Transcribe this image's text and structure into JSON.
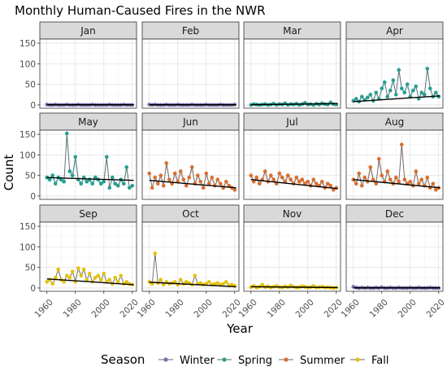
{
  "chart_data": {
    "type": "line",
    "title": "Monthly Human-Caused Fires in the NWR",
    "xlabel": "Year",
    "ylabel": "Count",
    "xlim": [
      1955,
      2023
    ],
    "ylim": [
      -8,
      160
    ],
    "x_ticks": [
      1960,
      1980,
      2000,
      2020
    ],
    "y_ticks": [
      0,
      50,
      100,
      150
    ],
    "grid": true,
    "legend": {
      "title": "Season",
      "position": "bottom",
      "entries": [
        {
          "name": "Winter",
          "color": "#7b6fae"
        },
        {
          "name": "Spring",
          "color": "#2a9d8f"
        },
        {
          "name": "Summer",
          "color": "#d96e2e"
        },
        {
          "name": "Fall",
          "color": "#e4c20d"
        }
      ]
    },
    "years": [
      1960,
      1962,
      1964,
      1966,
      1968,
      1970,
      1972,
      1974,
      1976,
      1978,
      1980,
      1982,
      1984,
      1986,
      1988,
      1990,
      1992,
      1994,
      1996,
      1998,
      2000,
      2002,
      2004,
      2006,
      2008,
      2010,
      2012,
      2014,
      2016,
      2018,
      2020
    ],
    "panels": [
      {
        "month": "Jan",
        "season": "Winter",
        "values": [
          1,
          0,
          0,
          1,
          0,
          0,
          0,
          1,
          0,
          0,
          0,
          1,
          0,
          0,
          0,
          0,
          1,
          0,
          0,
          0,
          0,
          0,
          1,
          0,
          0,
          0,
          0,
          1,
          0,
          0,
          0
        ],
        "trend": [
          0.4,
          0.4
        ]
      },
      {
        "month": "Feb",
        "season": "Winter",
        "values": [
          1,
          0,
          1,
          0,
          0,
          0,
          1,
          0,
          0,
          0,
          1,
          0,
          0,
          0,
          0,
          1,
          0,
          0,
          0,
          0,
          1,
          0,
          0,
          0,
          0,
          1,
          0,
          0,
          0,
          0,
          1
        ],
        "trend": [
          0.4,
          0.4
        ]
      },
      {
        "month": "Mar",
        "season": "Spring",
        "values": [
          0,
          2,
          1,
          0,
          1,
          2,
          0,
          1,
          3,
          0,
          2,
          1,
          4,
          0,
          2,
          1,
          3,
          0,
          2,
          5,
          1,
          2,
          0,
          3,
          1,
          4,
          2,
          1,
          6,
          2,
          1
        ],
        "trend": [
          0.5,
          3
        ]
      },
      {
        "month": "Apr",
        "season": "Spring",
        "values": [
          10,
          15,
          8,
          20,
          12,
          18,
          25,
          10,
          30,
          15,
          40,
          55,
          20,
          35,
          60,
          25,
          85,
          40,
          30,
          50,
          20,
          35,
          45,
          15,
          30,
          25,
          88,
          40,
          20,
          30,
          20
        ],
        "trend": [
          8,
          22
        ]
      },
      {
        "month": "May",
        "season": "Spring",
        "values": [
          45,
          40,
          50,
          30,
          45,
          40,
          35,
          152,
          60,
          50,
          95,
          40,
          30,
          45,
          35,
          40,
          30,
          45,
          40,
          30,
          35,
          95,
          20,
          45,
          30,
          25,
          40,
          30,
          70,
          20,
          25
        ],
        "trend": [
          45,
          38
        ]
      },
      {
        "month": "Jun",
        "season": "Summer",
        "values": [
          55,
          20,
          45,
          30,
          50,
          25,
          80,
          40,
          30,
          55,
          35,
          60,
          40,
          25,
          45,
          70,
          30,
          50,
          35,
          20,
          55,
          30,
          45,
          25,
          40,
          30,
          20,
          35,
          25,
          20,
          15
        ],
        "trend": [
          38,
          20
        ]
      },
      {
        "month": "Jul",
        "season": "Summer",
        "values": [
          50,
          35,
          45,
          30,
          40,
          60,
          35,
          50,
          40,
          30,
          55,
          45,
          35,
          50,
          40,
          30,
          45,
          35,
          40,
          30,
          35,
          25,
          40,
          30,
          25,
          35,
          20,
          30,
          25,
          15,
          20
        ],
        "trend": [
          40,
          18
        ]
      },
      {
        "month": "Aug",
        "season": "Summer",
        "values": [
          40,
          30,
          55,
          25,
          45,
          35,
          70,
          40,
          30,
          90,
          50,
          35,
          60,
          40,
          30,
          45,
          35,
          125,
          40,
          30,
          35,
          25,
          60,
          30,
          40,
          25,
          45,
          20,
          30,
          15,
          20
        ],
        "trend": [
          40,
          20
        ]
      },
      {
        "month": "Sep",
        "season": "Fall",
        "values": [
          15,
          20,
          10,
          25,
          45,
          20,
          15,
          30,
          25,
          40,
          15,
          48,
          30,
          45,
          20,
          35,
          15,
          25,
          30,
          20,
          35,
          15,
          20,
          10,
          25,
          15,
          30,
          10,
          15,
          10,
          8
        ],
        "trend": [
          22,
          8
        ]
      },
      {
        "month": "Oct",
        "season": "Fall",
        "values": [
          15,
          10,
          84,
          12,
          20,
          8,
          15,
          10,
          12,
          15,
          8,
          20,
          10,
          15,
          12,
          8,
          30,
          10,
          12,
          8,
          10,
          15,
          8,
          10,
          12,
          8,
          10,
          15,
          6,
          8,
          5
        ],
        "trend": [
          14,
          3
        ]
      },
      {
        "month": "Nov",
        "season": "Fall",
        "values": [
          2,
          5,
          1,
          3,
          8,
          2,
          4,
          1,
          3,
          5,
          2,
          1,
          4,
          2,
          6,
          3,
          1,
          2,
          4,
          3,
          1,
          2,
          5,
          1,
          2,
          3,
          1,
          2,
          1,
          0,
          1
        ],
        "trend": [
          3,
          1
        ]
      },
      {
        "month": "Dec",
        "season": "Winter",
        "values": [
          3,
          1,
          0,
          1,
          0,
          1,
          0,
          0,
          1,
          0,
          2,
          0,
          0,
          1,
          0,
          0,
          1,
          0,
          0,
          0,
          1,
          0,
          0,
          1,
          0,
          0,
          0,
          1,
          0,
          0,
          0
        ],
        "trend": [
          0.4,
          0.4
        ]
      }
    ]
  }
}
